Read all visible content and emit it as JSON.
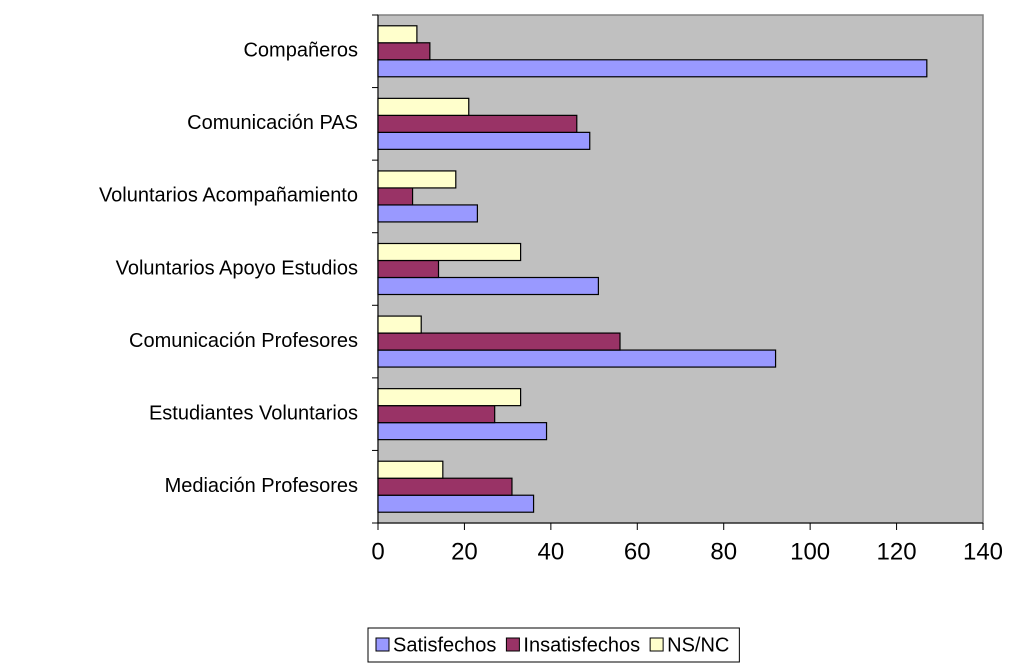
{
  "chart_data": {
    "type": "barh",
    "categories": [
      "Compañeros",
      "Comunicación PAS",
      "Voluntarios Acompañamiento",
      "Voluntarios Apoyo Estudios",
      "Comunicación Profesores",
      "Estudiantes Voluntarios",
      "Mediación Profesores"
    ],
    "series": [
      {
        "name": "Satisfechos",
        "color": "#9999ff",
        "values": [
          127,
          49,
          23,
          51,
          92,
          39,
          36
        ]
      },
      {
        "name": "Insatisfechos",
        "color": "#993366",
        "values": [
          12,
          46,
          8,
          14,
          56,
          27,
          31
        ]
      },
      {
        "name": "NS/NC",
        "color": "#ffffcc",
        "values": [
          9,
          21,
          18,
          33,
          10,
          33,
          15
        ]
      }
    ],
    "xlim": [
      0,
      140
    ],
    "xticks": [
      0,
      20,
      40,
      60,
      80,
      100,
      120,
      140
    ],
    "legend": "bottom"
  }
}
